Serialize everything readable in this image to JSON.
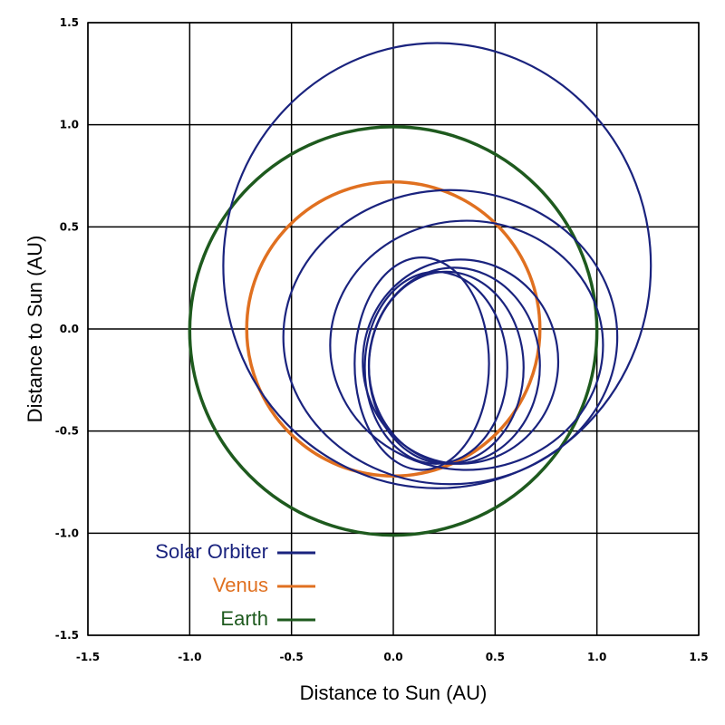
{
  "chart_data": {
    "type": "line",
    "xlabel": "Distance to Sun (AU)",
    "ylabel": "Distance to Sun (AU)",
    "xlim": [
      -1.5,
      1.5
    ],
    "ylim": [
      -1.5,
      1.5
    ],
    "x_ticks": [
      "-1.5",
      "-1.0",
      "-0.5",
      "0.0",
      "0.5",
      "1.0",
      "1.5"
    ],
    "y_ticks": [
      "-1.5",
      "-1.0",
      "-0.5",
      "0.0",
      "0.5",
      "1.0",
      "1.5"
    ],
    "grid": true,
    "legend_position": "bottom-left",
    "series": [
      {
        "name": "Solar Orbiter",
        "color": "#1a237e",
        "orbits": [
          {
            "cx": 0.215,
            "cy": 0.31,
            "rx": 1.05,
            "ry": 1.09
          },
          {
            "cx": 0.28,
            "cy": -0.04,
            "rx": 0.82,
            "ry": 0.72
          },
          {
            "cx": 0.36,
            "cy": -0.08,
            "rx": 0.67,
            "ry": 0.61
          },
          {
            "cx": 0.33,
            "cy": -0.16,
            "rx": 0.48,
            "ry": 0.5
          },
          {
            "cx": 0.3,
            "cy": -0.18,
            "rx": 0.42,
            "ry": 0.48
          },
          {
            "cx": 0.26,
            "cy": -0.19,
            "rx": 0.38,
            "ry": 0.47
          },
          {
            "cx": 0.21,
            "cy": -0.19,
            "rx": 0.35,
            "ry": 0.47
          },
          {
            "cx": 0.14,
            "cy": -0.17,
            "rx": 0.33,
            "ry": 0.52
          }
        ]
      },
      {
        "name": "Venus",
        "color": "#e07020",
        "orbits": [
          {
            "cx": 0.0,
            "cy": 0.0,
            "rx": 0.72,
            "ry": 0.72
          }
        ]
      },
      {
        "name": "Earth",
        "color": "#1e5a1e",
        "orbits": [
          {
            "cx": 0.0,
            "cy": -0.01,
            "rx": 1.0,
            "ry": 1.0
          }
        ]
      }
    ]
  }
}
